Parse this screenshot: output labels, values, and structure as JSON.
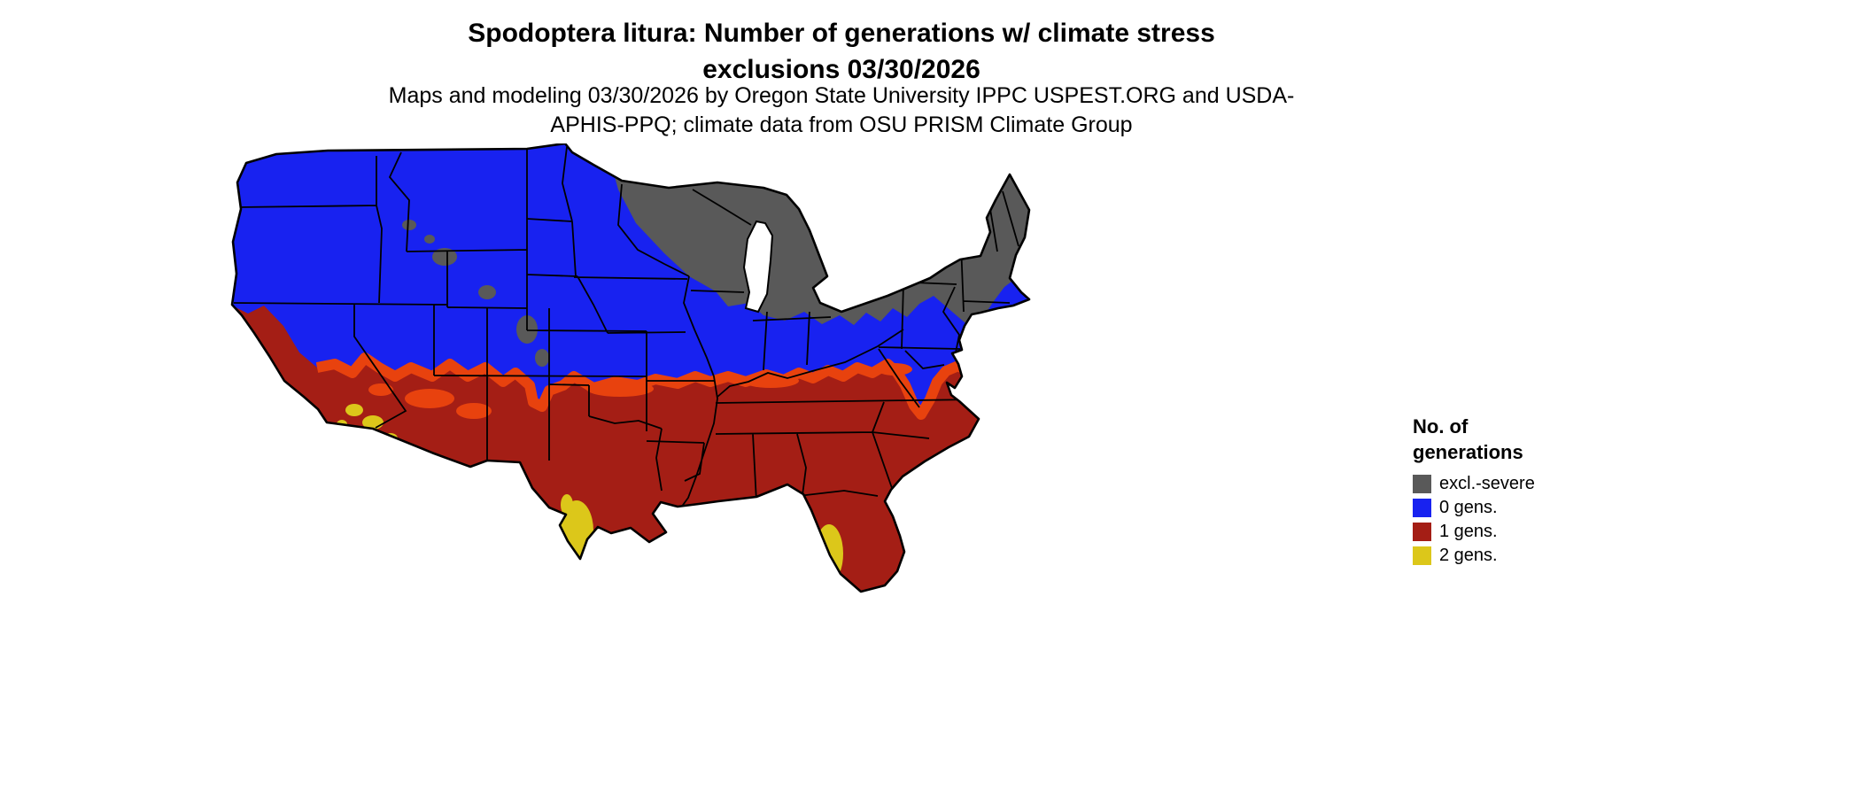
{
  "header": {
    "title": "Spodoptera litura: Number of generations w/ climate stress exclusions 03/30/2026",
    "subtitle": "Maps and modeling 03/30/2026 by Oregon State University IPPC USPEST.ORG and USDA-APHIS-PPQ; climate data from OSU PRISM Climate Group"
  },
  "legend": {
    "title": "No. of generations",
    "items": [
      {
        "id": "excl",
        "label": "excl.-severe",
        "color": "#595959"
      },
      {
        "id": "gens0",
        "label": "0 gens.",
        "color": "#1822f0"
      },
      {
        "id": "gens1",
        "label": "1 gens.",
        "color": "#a41e15"
      },
      {
        "id": "gens2",
        "label": "2 gens.",
        "color": "#dcc71a"
      }
    ]
  },
  "map": {
    "name": "contiguous-us-number-of-generations-map",
    "transition_color": "#e8420e",
    "water_color": "#ffffff",
    "border_color": "#000000"
  }
}
